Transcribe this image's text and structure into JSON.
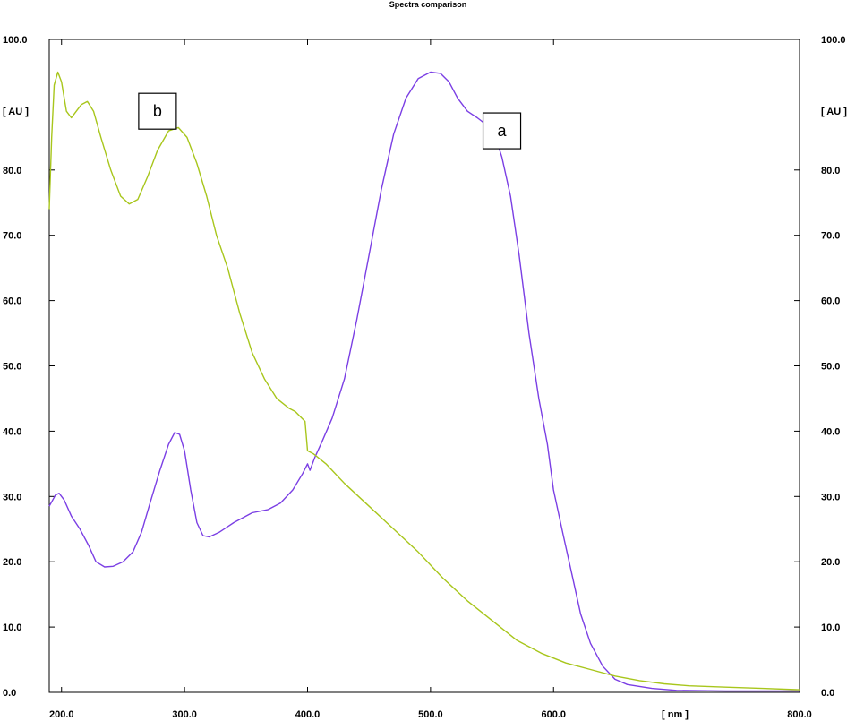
{
  "chart_data": {
    "type": "line",
    "title": "Spectra comparison",
    "xlabel": "[ nm ]",
    "ylabel_left": "[ AU ]",
    "ylabel_right": "[ AU ]",
    "xlim": [
      190,
      800
    ],
    "ylim": [
      0,
      100
    ],
    "x_ticks": [
      200,
      300,
      400,
      500,
      600,
      800
    ],
    "x_tick_labels": [
      "200.0",
      "300.0",
      "400.0",
      "500.0",
      "600.0",
      "800.0"
    ],
    "y_ticks": [
      0,
      10,
      20,
      30,
      40,
      50,
      60,
      70,
      80,
      100
    ],
    "y_tick_labels": [
      "0.0",
      "10.0",
      "20.0",
      "30.0",
      "40.0",
      "50.0",
      "60.0",
      "70.0",
      "80.0",
      "100.0"
    ],
    "grid": false,
    "series": [
      {
        "name": "a",
        "color": "#7b3fe4",
        "points": [
          [
            190,
            28.5
          ],
          [
            195,
            30.2
          ],
          [
            198,
            30.5
          ],
          [
            202,
            29.5
          ],
          [
            208,
            27.0
          ],
          [
            215,
            25.0
          ],
          [
            222,
            22.5
          ],
          [
            228,
            20.0
          ],
          [
            235,
            19.2
          ],
          [
            242,
            19.3
          ],
          [
            250,
            20.0
          ],
          [
            258,
            21.5
          ],
          [
            265,
            24.5
          ],
          [
            272,
            29.0
          ],
          [
            280,
            34.0
          ],
          [
            287,
            38.0
          ],
          [
            292,
            39.8
          ],
          [
            296,
            39.5
          ],
          [
            300,
            37.0
          ],
          [
            305,
            31.0
          ],
          [
            310,
            26.0
          ],
          [
            315,
            24.0
          ],
          [
            320,
            23.8
          ],
          [
            328,
            24.5
          ],
          [
            340,
            26.0
          ],
          [
            355,
            27.5
          ],
          [
            368,
            28.0
          ],
          [
            378,
            29.0
          ],
          [
            388,
            31.0
          ],
          [
            396,
            33.5
          ],
          [
            400,
            35.0
          ],
          [
            402,
            34.0
          ],
          [
            406,
            36.0
          ],
          [
            412,
            38.5
          ],
          [
            420,
            42.0
          ],
          [
            430,
            48.0
          ],
          [
            440,
            57.0
          ],
          [
            450,
            67.0
          ],
          [
            460,
            77.0
          ],
          [
            470,
            85.5
          ],
          [
            480,
            91.0
          ],
          [
            490,
            94.0
          ],
          [
            500,
            95.0
          ],
          [
            508,
            94.8
          ],
          [
            515,
            93.5
          ],
          [
            522,
            91.0
          ],
          [
            530,
            89.0
          ],
          [
            538,
            88.0
          ],
          [
            545,
            87.0
          ],
          [
            552,
            85.5
          ],
          [
            558,
            82.0
          ],
          [
            565,
            76.0
          ],
          [
            572,
            67.0
          ],
          [
            580,
            55.0
          ],
          [
            588,
            45.0
          ],
          [
            595,
            38.0
          ],
          [
            600,
            31.0
          ],
          [
            608,
            24.0
          ],
          [
            615,
            18.0
          ],
          [
            622,
            12.0
          ],
          [
            630,
            7.5
          ],
          [
            640,
            4.0
          ],
          [
            650,
            2.0
          ],
          [
            660,
            1.2
          ],
          [
            680,
            0.6
          ],
          [
            700,
            0.3
          ],
          [
            740,
            0.2
          ],
          [
            770,
            0.2
          ],
          [
            800,
            0.2
          ]
        ]
      },
      {
        "name": "b",
        "color": "#a8c61c",
        "points": [
          [
            190,
            74.0
          ],
          [
            192,
            85.0
          ],
          [
            194,
            93.0
          ],
          [
            197,
            95.0
          ],
          [
            200,
            93.5
          ],
          [
            204,
            89.0
          ],
          [
            208,
            88.0
          ],
          [
            212,
            89.0
          ],
          [
            216,
            90.0
          ],
          [
            221,
            90.5
          ],
          [
            226,
            89.0
          ],
          [
            232,
            85.0
          ],
          [
            240,
            80.0
          ],
          [
            248,
            76.0
          ],
          [
            255,
            74.8
          ],
          [
            262,
            75.5
          ],
          [
            270,
            79.0
          ],
          [
            278,
            83.0
          ],
          [
            287,
            86.0
          ],
          [
            295,
            86.5
          ],
          [
            302,
            85.0
          ],
          [
            310,
            81.0
          ],
          [
            318,
            76.0
          ],
          [
            326,
            70.0
          ],
          [
            335,
            65.0
          ],
          [
            345,
            58.0
          ],
          [
            355,
            52.0
          ],
          [
            365,
            48.0
          ],
          [
            375,
            45.0
          ],
          [
            385,
            43.5
          ],
          [
            390,
            43.0
          ],
          [
            398,
            41.5
          ],
          [
            400,
            37.0
          ],
          [
            405,
            36.5
          ],
          [
            415,
            35.0
          ],
          [
            430,
            32.0
          ],
          [
            450,
            28.5
          ],
          [
            470,
            25.0
          ],
          [
            490,
            21.5
          ],
          [
            510,
            17.5
          ],
          [
            530,
            14.0
          ],
          [
            550,
            11.0
          ],
          [
            570,
            8.0
          ],
          [
            590,
            6.0
          ],
          [
            610,
            4.5
          ],
          [
            630,
            3.5
          ],
          [
            650,
            2.5
          ],
          [
            670,
            1.8
          ],
          [
            690,
            1.3
          ],
          [
            710,
            1.0
          ],
          [
            740,
            0.8
          ],
          [
            770,
            0.6
          ],
          [
            800,
            0.4
          ]
        ]
      }
    ],
    "annotations": [
      {
        "text": "a",
        "x": 558,
        "y": 86.0
      },
      {
        "text": "b",
        "x": 278,
        "y": 89.0
      }
    ]
  }
}
